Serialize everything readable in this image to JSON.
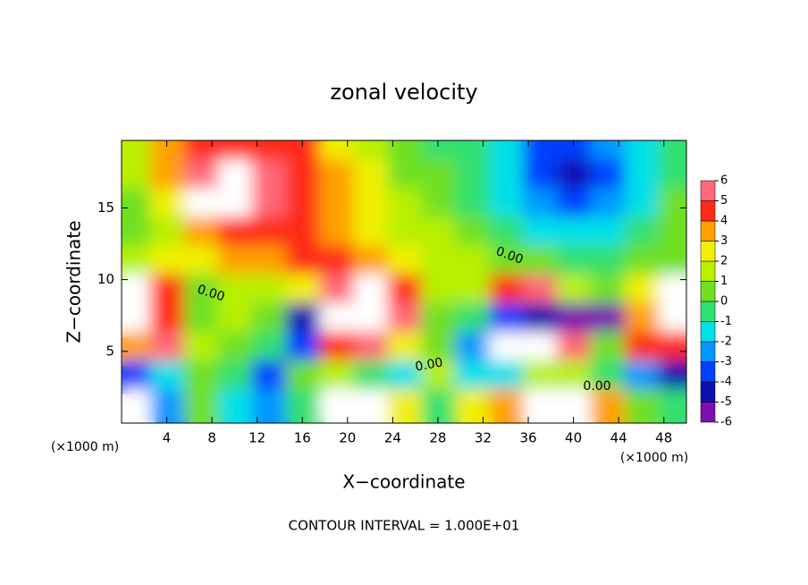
{
  "chart_data": {
    "type": "contour",
    "title": "zonal velocity",
    "x_label": "X−coordinate",
    "y_label": "Z−coordinate",
    "x_unit": "(×1000 m)",
    "x_unit_right": "(×1000 m)",
    "footer": "CONTOUR INTERVAL = 1.000E+01",
    "contour_labels": [
      "0.00",
      "0.00",
      "0.00",
      "0.00"
    ],
    "xlim": [
      0,
      50
    ],
    "ylim": [
      0,
      19.7
    ],
    "xticks": [
      4,
      8,
      12,
      16,
      20,
      24,
      28,
      32,
      36,
      40,
      44,
      48
    ],
    "yticks": [
      5,
      10,
      15
    ],
    "x": [
      1.5,
      4.5,
      7.5,
      10.5,
      13.5,
      16.5,
      19.5,
      22.5,
      25.5,
      28.5,
      31.5,
      34.5,
      37.5,
      40.5,
      43.5,
      46.5,
      49.5
    ],
    "y": [
      19,
      17,
      15,
      13,
      11,
      9,
      7,
      5,
      3,
      1
    ],
    "z": [
      [
        1,
        3,
        4,
        4,
        4,
        4,
        2,
        1,
        0,
        -1,
        -1,
        -2,
        -4,
        -4,
        -3,
        -2,
        -1
      ],
      [
        1,
        3,
        5,
        6,
        5,
        4,
        3,
        2,
        0,
        0,
        -1,
        -2,
        -4,
        -5,
        -4,
        -2,
        -1
      ],
      [
        0,
        2,
        6,
        7,
        5,
        4,
        3,
        2,
        1,
        0,
        -1,
        -2,
        -3,
        -4,
        -3,
        -2,
        0
      ],
      [
        0,
        1,
        3,
        4,
        4,
        4,
        3,
        2,
        1,
        1,
        0,
        -1,
        -2,
        -2,
        -2,
        -1,
        0
      ],
      [
        1,
        2,
        2,
        3,
        3,
        4,
        4,
        3,
        2,
        1,
        1,
        0,
        0,
        -1,
        -1,
        0,
        0
      ],
      [
        7,
        4,
        0,
        1,
        1,
        2,
        5,
        6,
        4,
        1,
        1,
        4,
        5,
        1,
        0,
        2,
        7
      ],
      [
        8,
        4,
        0,
        1,
        0,
        -5,
        6,
        8,
        5,
        0,
        -1,
        -4,
        -5,
        -6,
        -6,
        3,
        8
      ],
      [
        3,
        5,
        1,
        0,
        -1,
        -4,
        4,
        5,
        2,
        0,
        -3,
        7,
        7,
        5,
        0,
        4,
        4
      ],
      [
        -4,
        -2,
        0,
        -1,
        -4,
        0,
        1,
        -1,
        -2,
        1,
        -2,
        -2,
        1,
        1,
        -1,
        -3,
        -5
      ],
      [
        -7,
        -3,
        0,
        -2,
        -3,
        -1,
        8,
        9,
        2,
        -1,
        2,
        3,
        7,
        8,
        3,
        0,
        -1
      ]
    ],
    "color_levels": [
      -6,
      -5,
      -4,
      -3,
      -2,
      -1,
      0,
      1,
      2,
      3,
      4,
      5,
      6
    ],
    "colors": [
      "#7a10b0",
      "#1010b0",
      "#0040ff",
      "#0098ff",
      "#00e0e8",
      "#30e070",
      "#70e020",
      "#b8f000",
      "#f0f000",
      "#ffa000",
      "#ff2a18",
      "#ff6878"
    ],
    "out_of_range_color": "#ffffff"
  }
}
